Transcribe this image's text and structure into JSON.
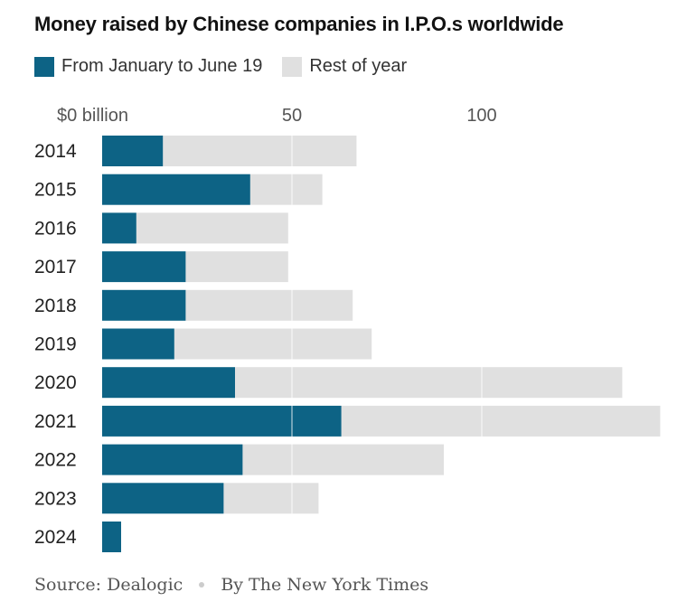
{
  "title": "Money raised by Chinese companies in I.P.O.s worldwide",
  "legend": [
    {
      "label": "From January to June 19",
      "color": "#0d6385"
    },
    {
      "label": "Rest of year",
      "color": "#e0e0e0"
    }
  ],
  "footer": {
    "source": "Source: Dealogic",
    "credit": "By The New York Times"
  },
  "chart_data": {
    "type": "bar",
    "orientation": "horizontal",
    "stacked": true,
    "categories": [
      "2014",
      "2015",
      "2016",
      "2017",
      "2018",
      "2019",
      "2020",
      "2021",
      "2022",
      "2023",
      "2024"
    ],
    "series": [
      {
        "name": "From January to June 19",
        "color": "#0d6385",
        "values": [
          16,
          39,
          9,
          22,
          22,
          19,
          35,
          63,
          37,
          32,
          5
        ]
      },
      {
        "name": "Rest of year",
        "color": "#e0e0e0",
        "values": [
          51,
          19,
          40,
          27,
          44,
          52,
          102,
          84,
          53,
          25,
          0
        ]
      }
    ],
    "xlim": [
      0,
      150
    ],
    "xticks": [
      0,
      50,
      100
    ],
    "xtick_labels": [
      "$0 billion",
      "50",
      "100"
    ],
    "grid": true
  }
}
